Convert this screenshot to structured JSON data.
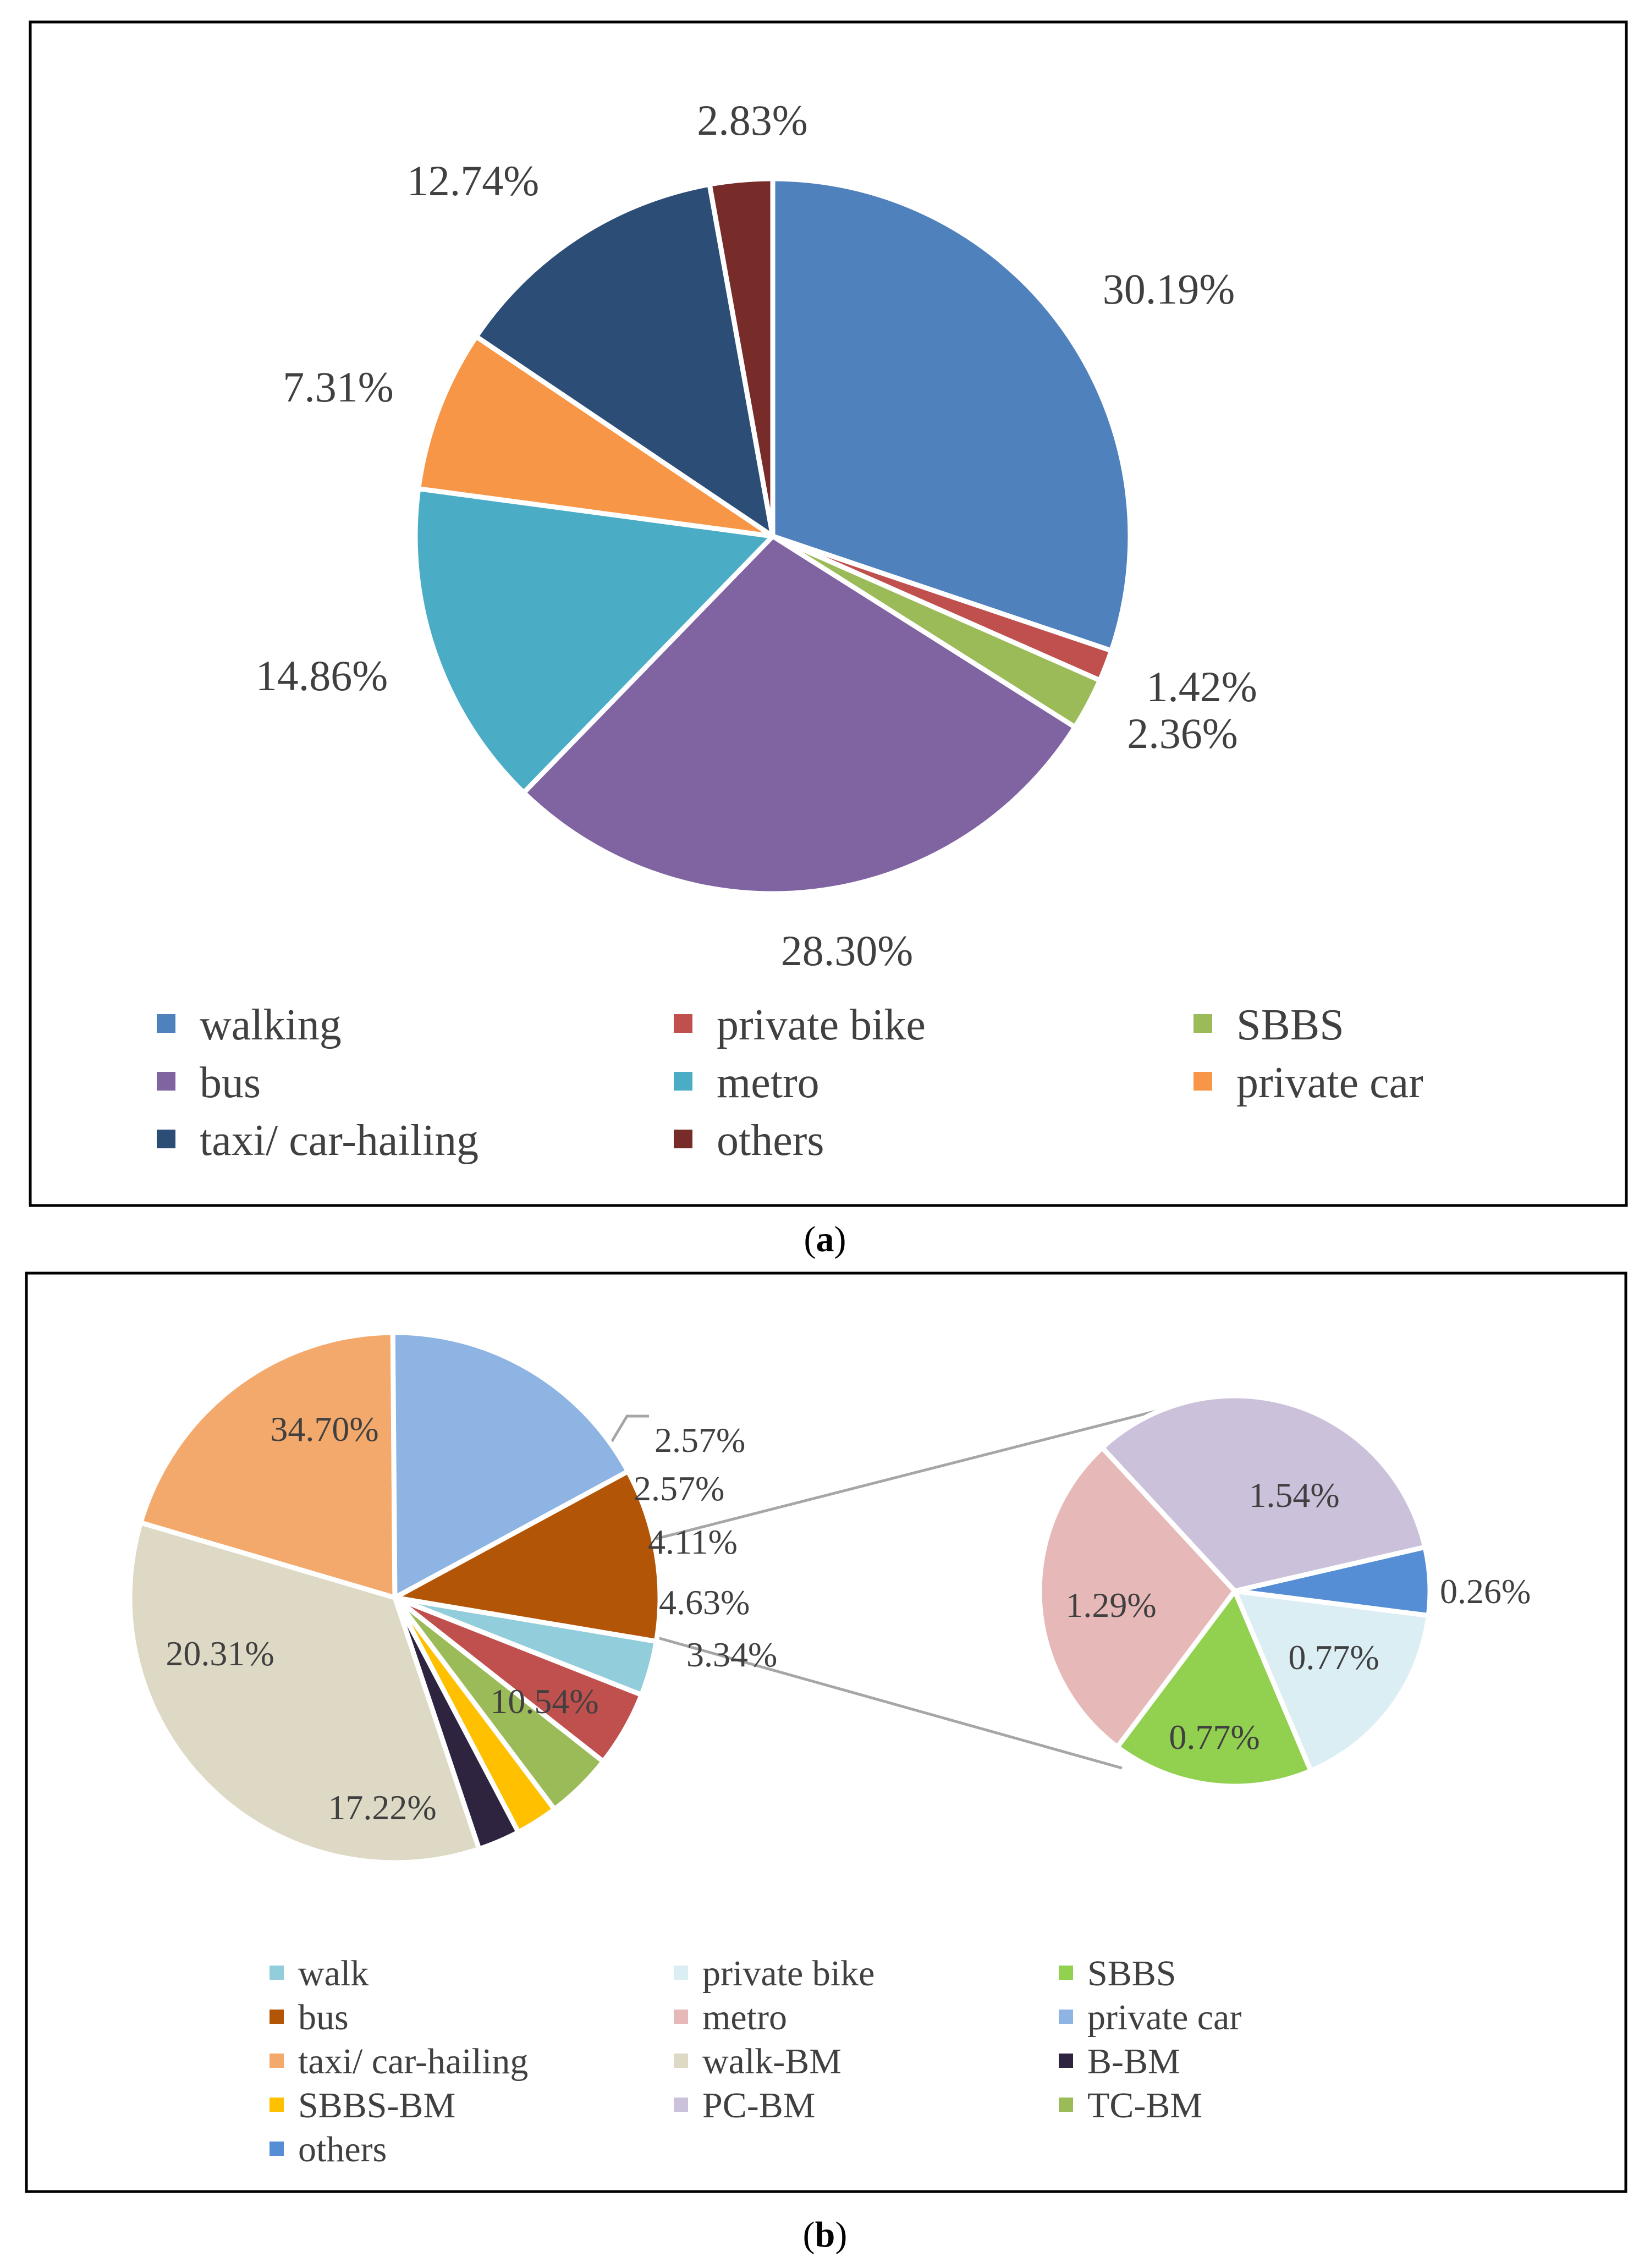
{
  "chart_data": [
    {
      "id": "a",
      "type": "pie",
      "title": "",
      "caption_letter": "a",
      "slices": [
        {
          "label": "walking",
          "value": 30.19,
          "text": "30.19%",
          "color": "#4F81BD"
        },
        {
          "label": "private bike",
          "value": 1.42,
          "text": "1.42%",
          "color": "#C0504D"
        },
        {
          "label": "SBBS",
          "value": 2.36,
          "text": "2.36%",
          "color": "#9BBB59"
        },
        {
          "label": "bus",
          "value": 28.3,
          "text": "28.30%",
          "color": "#8064A2"
        },
        {
          "label": "metro",
          "value": 14.86,
          "text": "14.86%",
          "color": "#4BACC6"
        },
        {
          "label": "private car",
          "value": 7.31,
          "text": "7.31%",
          "color": "#F79646"
        },
        {
          "label": "taxi/ car-hailing",
          "value": 12.74,
          "text": "12.74%",
          "color": "#2C4D75"
        },
        {
          "label": "others",
          "value": 2.83,
          "text": "2.83%",
          "color": "#772C2A"
        }
      ],
      "legend": [
        "walking",
        "private bike",
        "SBBS",
        "bus",
        "metro",
        "private car",
        "taxi/ car-hailing",
        "others"
      ],
      "legend_position": "bottom"
    },
    {
      "id": "b",
      "type": "pie",
      "subtype": "pie-of-pie",
      "title": "",
      "caption_letter": "b",
      "main_slices": [
        {
          "label": "walk",
          "value": 3.34,
          "text": "3.34%",
          "color": "#92CDDC"
        },
        {
          "label": "walk-BM",
          "value": 4.63,
          "text": "4.63%",
          "color": "#C0504D"
        },
        {
          "label": "TC-BM",
          "value": 4.11,
          "text": "4.11%",
          "color": "#9BBB59"
        },
        {
          "label": "SBBS-BM",
          "value": 2.57,
          "text": "2.57%",
          "color": "#FFC000"
        },
        {
          "label": "B-BM",
          "value": 2.57,
          "text": "2.57%",
          "color": "#2E2440"
        },
        {
          "label": "walk-BM",
          "value": 34.7,
          "text": "34.70%",
          "color": "#DDD9C4"
        },
        {
          "label": "taxi/ car-hailing",
          "value": 20.31,
          "text": "20.31%",
          "color": "#F4A96C"
        },
        {
          "label": "private car",
          "value": 17.22,
          "text": "17.22%",
          "color": "#8DB4E2"
        },
        {
          "label": "bus",
          "value": 10.54,
          "text": "10.54%",
          "color": "#B35507"
        }
      ],
      "secondary_slices": [
        {
          "label": "others",
          "value": 0.26,
          "text": "0.26%",
          "color": "#558ED5"
        },
        {
          "label": "private bike",
          "value": 0.77,
          "text": "0.77%",
          "color": "#DBEEF4"
        },
        {
          "label": "SBBS",
          "value": 0.77,
          "text": "0.77%",
          "color": "#92D050"
        },
        {
          "label": "metro",
          "value": 1.29,
          "text": "1.29%",
          "color": "#E6B9B8"
        },
        {
          "label": "PC-BM",
          "value": 1.54,
          "text": "1.54%",
          "color": "#CCC1DA"
        }
      ],
      "legend": [
        {
          "label": "walk",
          "color": "#92CDDC"
        },
        {
          "label": "private bike",
          "color": "#DBEEF4"
        },
        {
          "label": "SBBS",
          "color": "#92D050"
        },
        {
          "label": "bus",
          "color": "#B35507"
        },
        {
          "label": "metro",
          "color": "#E6B9B8"
        },
        {
          "label": "private car",
          "color": "#8DB4E2"
        },
        {
          "label": "taxi/ car-hailing",
          "color": "#F4A96C"
        },
        {
          "label": "walk-BM",
          "color": "#DDD9C4"
        },
        {
          "label": "B-BM",
          "color": "#2E2440"
        },
        {
          "label": "SBBS-BM",
          "color": "#FFC000"
        },
        {
          "label": "PC-BM",
          "color": "#CCC1DA"
        },
        {
          "label": "TC-BM",
          "color": "#9BBB59"
        },
        {
          "label": "others",
          "color": "#558ED5"
        }
      ],
      "legend_position": "bottom"
    }
  ]
}
